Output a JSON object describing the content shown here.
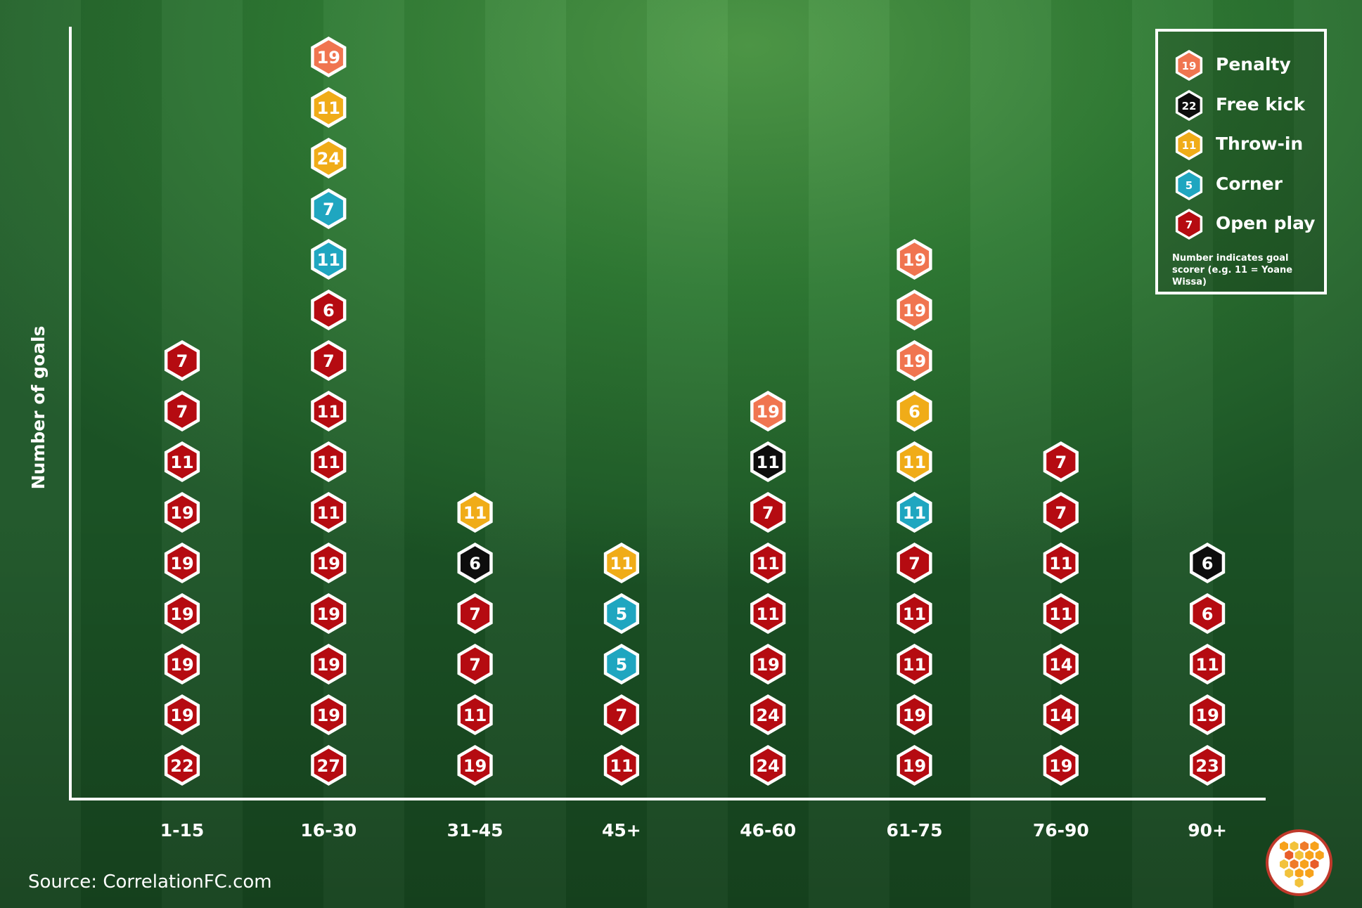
{
  "chart_data": {
    "type": "dot-stack",
    "categories": [
      "1-15",
      "16-30",
      "31-45",
      "45+",
      "46-60",
      "61-75",
      "76-90",
      "90+"
    ],
    "ylabel": "Number of goals",
    "xlabel": "",
    "columns": [
      {
        "category": "1-15",
        "goals": [
          {
            "scorer": "22",
            "type": "Open play"
          },
          {
            "scorer": "19",
            "type": "Open play"
          },
          {
            "scorer": "19",
            "type": "Open play"
          },
          {
            "scorer": "19",
            "type": "Open play"
          },
          {
            "scorer": "19",
            "type": "Open play"
          },
          {
            "scorer": "19",
            "type": "Open play"
          },
          {
            "scorer": "11",
            "type": "Open play"
          },
          {
            "scorer": "7",
            "type": "Open play"
          },
          {
            "scorer": "7",
            "type": "Open play"
          }
        ]
      },
      {
        "category": "16-30",
        "goals": [
          {
            "scorer": "27",
            "type": "Open play"
          },
          {
            "scorer": "19",
            "type": "Open play"
          },
          {
            "scorer": "19",
            "type": "Open play"
          },
          {
            "scorer": "19",
            "type": "Open play"
          },
          {
            "scorer": "19",
            "type": "Open play"
          },
          {
            "scorer": "11",
            "type": "Open play"
          },
          {
            "scorer": "11",
            "type": "Open play"
          },
          {
            "scorer": "11",
            "type": "Open play"
          },
          {
            "scorer": "7",
            "type": "Open play"
          },
          {
            "scorer": "6",
            "type": "Open play"
          },
          {
            "scorer": "11",
            "type": "Corner"
          },
          {
            "scorer": "7",
            "type": "Corner"
          },
          {
            "scorer": "24",
            "type": "Throw-in"
          },
          {
            "scorer": "11",
            "type": "Throw-in"
          },
          {
            "scorer": "19",
            "type": "Penalty"
          }
        ]
      },
      {
        "category": "31-45",
        "goals": [
          {
            "scorer": "19",
            "type": "Open play"
          },
          {
            "scorer": "11",
            "type": "Open play"
          },
          {
            "scorer": "7",
            "type": "Open play"
          },
          {
            "scorer": "7",
            "type": "Open play"
          },
          {
            "scorer": "6",
            "type": "Free kick"
          },
          {
            "scorer": "11",
            "type": "Throw-in"
          }
        ]
      },
      {
        "category": "45+",
        "goals": [
          {
            "scorer": "11",
            "type": "Open play"
          },
          {
            "scorer": "7",
            "type": "Open play"
          },
          {
            "scorer": "5",
            "type": "Corner"
          },
          {
            "scorer": "5",
            "type": "Corner"
          },
          {
            "scorer": "11",
            "type": "Throw-in"
          }
        ]
      },
      {
        "category": "46-60",
        "goals": [
          {
            "scorer": "24",
            "type": "Open play"
          },
          {
            "scorer": "24",
            "type": "Open play"
          },
          {
            "scorer": "19",
            "type": "Open play"
          },
          {
            "scorer": "11",
            "type": "Open play"
          },
          {
            "scorer": "11",
            "type": "Open play"
          },
          {
            "scorer": "7",
            "type": "Open play"
          },
          {
            "scorer": "11",
            "type": "Free kick"
          },
          {
            "scorer": "19",
            "type": "Penalty"
          }
        ]
      },
      {
        "category": "61-75",
        "goals": [
          {
            "scorer": "19",
            "type": "Open play"
          },
          {
            "scorer": "19",
            "type": "Open play"
          },
          {
            "scorer": "11",
            "type": "Open play"
          },
          {
            "scorer": "11",
            "type": "Open play"
          },
          {
            "scorer": "7",
            "type": "Open play"
          },
          {
            "scorer": "11",
            "type": "Corner"
          },
          {
            "scorer": "11",
            "type": "Throw-in"
          },
          {
            "scorer": "6",
            "type": "Throw-in"
          },
          {
            "scorer": "19",
            "type": "Penalty"
          },
          {
            "scorer": "19",
            "type": "Penalty"
          },
          {
            "scorer": "19",
            "type": "Penalty"
          }
        ]
      },
      {
        "category": "76-90",
        "goals": [
          {
            "scorer": "19",
            "type": "Open play"
          },
          {
            "scorer": "14",
            "type": "Open play"
          },
          {
            "scorer": "14",
            "type": "Open play"
          },
          {
            "scorer": "11",
            "type": "Open play"
          },
          {
            "scorer": "11",
            "type": "Open play"
          },
          {
            "scorer": "7",
            "type": "Open play"
          },
          {
            "scorer": "7",
            "type": "Open play"
          }
        ]
      },
      {
        "category": "90+",
        "goals": [
          {
            "scorer": "23",
            "type": "Open play"
          },
          {
            "scorer": "19",
            "type": "Open play"
          },
          {
            "scorer": "11",
            "type": "Open play"
          },
          {
            "scorer": "6",
            "type": "Open play"
          },
          {
            "scorer": "6",
            "type": "Free kick"
          }
        ]
      }
    ],
    "legend": [
      {
        "label": "Penalty",
        "example": "19",
        "color": "#f07550"
      },
      {
        "label": "Free kick",
        "example": "22",
        "color": "#0d0d0d"
      },
      {
        "label": "Throw-in",
        "example": "11",
        "color": "#f0ac18"
      },
      {
        "label": "Corner",
        "example": "5",
        "color": "#1fa6c0"
      },
      {
        "label": "Open play",
        "example": "7",
        "color": "#b50b11"
      }
    ],
    "legend_position": "top-right",
    "legend_note": "Number indicates goal scorer (e.g. 11 = Yoane Wissa)"
  },
  "type_colors": {
    "Penalty": "#f07550",
    "Free kick": "#0d0d0d",
    "Throw-in": "#f0ac18",
    "Corner": "#1fa6c0",
    "Open play": "#b50b11"
  },
  "source": "Source: CorrelationFC.com",
  "logo_icon": "hexagon-honeycomb-logo"
}
